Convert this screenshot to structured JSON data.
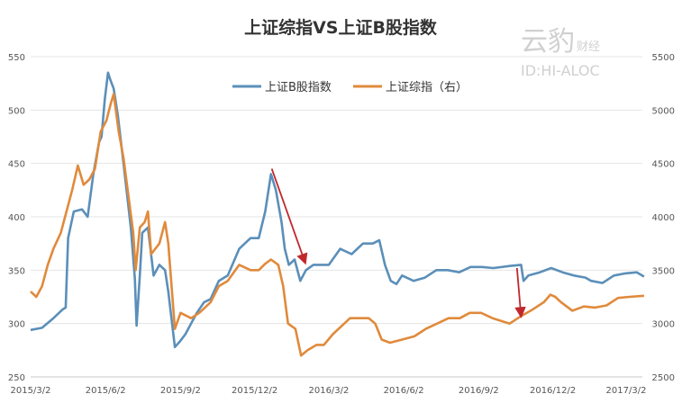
{
  "chart_data": {
    "type": "line",
    "title": "上证综指VS上证B股指数",
    "watermark": {
      "brand_large": "云豹",
      "brand_small": "财经",
      "id_text": "ID:HI-ALOC"
    },
    "x_ticks": [
      "2015/3/2",
      "2015/6/2",
      "2015/9/2",
      "2015/12/2",
      "2016/3/2",
      "2016/6/2",
      "2016/9/2",
      "2016/12/2",
      "2017/3/2"
    ],
    "y_left": {
      "ticks": [
        "250",
        "300",
        "350",
        "400",
        "450",
        "500",
        "550"
      ],
      "ylim": [
        250,
        550
      ]
    },
    "y_right": {
      "ticks": [
        "2500",
        "3000",
        "3500",
        "4000",
        "4500",
        "5000",
        "5500"
      ],
      "ylim": [
        2500,
        5500
      ]
    },
    "legend_position": "top-center",
    "series": [
      {
        "name": "上证B股指数",
        "axis": "left",
        "color": "#5b8fb9",
        "points": [
          [
            "2015/3/2",
            294
          ],
          [
            "2015/3/16",
            296
          ],
          [
            "2015/3/30",
            305
          ],
          [
            "2015/4/10",
            313
          ],
          [
            "2015/4/14",
            315
          ],
          [
            "2015/4/17",
            380
          ],
          [
            "2015/4/24",
            405
          ],
          [
            "2015/5/4",
            407
          ],
          [
            "2015/5/11",
            400
          ],
          [
            "2015/5/18",
            440
          ],
          [
            "2015/5/25",
            470
          ],
          [
            "2015/5/28",
            475
          ],
          [
            "2015/6/1",
            510
          ],
          [
            "2015/6/5",
            535
          ],
          [
            "2015/6/8",
            528
          ],
          [
            "2015/6/12",
            520
          ],
          [
            "2015/6/17",
            495
          ],
          [
            "2015/6/24",
            450
          ],
          [
            "2015/7/3",
            390
          ],
          [
            "2015/7/8",
            342
          ],
          [
            "2015/7/10",
            298
          ],
          [
            "2015/7/14",
            345
          ],
          [
            "2015/7/17",
            385
          ],
          [
            "2015/7/24",
            390
          ],
          [
            "2015/7/31",
            345
          ],
          [
            "2015/8/7",
            355
          ],
          [
            "2015/8/14",
            350
          ],
          [
            "2015/8/18",
            330
          ],
          [
            "2015/8/26",
            278
          ],
          [
            "2015/9/1",
            283
          ],
          [
            "2015/9/8",
            290
          ],
          [
            "2015/9/15",
            300
          ],
          [
            "2015/9/22",
            310
          ],
          [
            "2015/10/1",
            320
          ],
          [
            "2015/10/9",
            323
          ],
          [
            "2015/10/19",
            340
          ],
          [
            "2015/10/30",
            345
          ],
          [
            "2015/11/13",
            370
          ],
          [
            "2015/11/27",
            380
          ],
          [
            "2015/12/7",
            380
          ],
          [
            "2015/12/15",
            405
          ],
          [
            "2015/12/22",
            440
          ],
          [
            "2015/12/28",
            425
          ],
          [
            "2016/1/4",
            395
          ],
          [
            "2016/1/8",
            370
          ],
          [
            "2016/1/13",
            355
          ],
          [
            "2016/1/20",
            360
          ],
          [
            "2016/1/27",
            340
          ],
          [
            "2016/2/3",
            350
          ],
          [
            "2016/2/12",
            355
          ],
          [
            "2016/2/22",
            355
          ],
          [
            "2016/3/2",
            355
          ],
          [
            "2016/3/16",
            370
          ],
          [
            "2016/3/30",
            365
          ],
          [
            "2016/4/13",
            375
          ],
          [
            "2016/4/25",
            375
          ],
          [
            "2016/5/3",
            378
          ],
          [
            "2016/5/10",
            355
          ],
          [
            "2016/5/17",
            340
          ],
          [
            "2016/5/24",
            337
          ],
          [
            "2016/5/31",
            345
          ],
          [
            "2016/6/14",
            340
          ],
          [
            "2016/6/28",
            343
          ],
          [
            "2016/7/12",
            350
          ],
          [
            "2016/7/26",
            350
          ],
          [
            "2016/8/9",
            348
          ],
          [
            "2016/8/23",
            353
          ],
          [
            "2016/9/6",
            353
          ],
          [
            "2016/9/20",
            352
          ],
          [
            "2016/10/11",
            354
          ],
          [
            "2016/10/24",
            355
          ],
          [
            "2016/10/27",
            340
          ],
          [
            "2016/11/2",
            345
          ],
          [
            "2016/11/16",
            348
          ],
          [
            "2016/11/30",
            352
          ],
          [
            "2016/12/14",
            348
          ],
          [
            "2016/12/28",
            345
          ],
          [
            "2017/1/11",
            343
          ],
          [
            "2017/1/18",
            340
          ],
          [
            "2017/2/1",
            338
          ],
          [
            "2017/2/15",
            345
          ],
          [
            "2017/3/1",
            347
          ],
          [
            "2017/3/15",
            348
          ],
          [
            "2017/3/24",
            344
          ]
        ]
      },
      {
        "name": "上证综指（右）",
        "axis": "right",
        "color": "#e08a3c",
        "points": [
          [
            "2015/3/2",
            3300
          ],
          [
            "2015/3/9",
            3250
          ],
          [
            "2015/3/16",
            3350
          ],
          [
            "2015/3/23",
            3550
          ],
          [
            "2015/3/30",
            3700
          ],
          [
            "2015/4/8",
            3850
          ],
          [
            "2015/4/15",
            4050
          ],
          [
            "2015/4/22",
            4250
          ],
          [
            "2015/4/29",
            4480
          ],
          [
            "2015/5/6",
            4300
          ],
          [
            "2015/5/13",
            4350
          ],
          [
            "2015/5/20",
            4450
          ],
          [
            "2015/5/27",
            4800
          ],
          [
            "2015/6/3",
            4900
          ],
          [
            "2015/6/8",
            5050
          ],
          [
            "2015/6/12",
            5150
          ],
          [
            "2015/6/18",
            4800
          ],
          [
            "2015/6/24",
            4550
          ],
          [
            "2015/6/30",
            4200
          ],
          [
            "2015/7/6",
            3850
          ],
          [
            "2015/7/9",
            3500
          ],
          [
            "2015/7/14",
            3900
          ],
          [
            "2015/7/20",
            3950
          ],
          [
            "2015/7/24",
            4050
          ],
          [
            "2015/7/28",
            3650
          ],
          [
            "2015/8/7",
            3750
          ],
          [
            "2015/8/14",
            3950
          ],
          [
            "2015/8/18",
            3750
          ],
          [
            "2015/8/26",
            2950
          ],
          [
            "2015/9/2",
            3100
          ],
          [
            "2015/9/15",
            3050
          ],
          [
            "2015/9/25",
            3100
          ],
          [
            "2015/10/9",
            3200
          ],
          [
            "2015/10/19",
            3350
          ],
          [
            "2015/10/30",
            3400
          ],
          [
            "2015/11/13",
            3550
          ],
          [
            "2015/11/27",
            3500
          ],
          [
            "2015/12/7",
            3500
          ],
          [
            "2015/12/15",
            3560
          ],
          [
            "2015/12/22",
            3600
          ],
          [
            "2015/12/31",
            3550
          ],
          [
            "2016/1/6",
            3350
          ],
          [
            "2016/1/12",
            3000
          ],
          [
            "2016/1/21",
            2950
          ],
          [
            "2016/1/28",
            2700
          ],
          [
            "2016/2/5",
            2750
          ],
          [
            "2016/2/16",
            2800
          ],
          [
            "2016/2/25",
            2800
          ],
          [
            "2016/3/7",
            2900
          ],
          [
            "2016/3/14",
            2950
          ],
          [
            "2016/3/28",
            3050
          ],
          [
            "2016/4/11",
            3050
          ],
          [
            "2016/4/20",
            3050
          ],
          [
            "2016/4/28",
            3000
          ],
          [
            "2016/5/6",
            2850
          ],
          [
            "2016/5/16",
            2820
          ],
          [
            "2016/5/31",
            2850
          ],
          [
            "2016/6/15",
            2880
          ],
          [
            "2016/6/29",
            2950
          ],
          [
            "2016/7/13",
            3000
          ],
          [
            "2016/7/27",
            3050
          ],
          [
            "2016/8/10",
            3050
          ],
          [
            "2016/8/22",
            3100
          ],
          [
            "2016/9/5",
            3100
          ],
          [
            "2016/9/19",
            3050
          ],
          [
            "2016/10/10",
            3000
          ],
          [
            "2016/10/24",
            3070
          ],
          [
            "2016/11/7",
            3130
          ],
          [
            "2016/11/21",
            3200
          ],
          [
            "2016/11/29",
            3270
          ],
          [
            "2016/12/5",
            3250
          ],
          [
            "2016/12/12",
            3200
          ],
          [
            "2016/12/26",
            3120
          ],
          [
            "2017/1/9",
            3160
          ],
          [
            "2017/1/23",
            3150
          ],
          [
            "2017/2/6",
            3170
          ],
          [
            "2017/2/20",
            3240
          ],
          [
            "2017/3/6",
            3250
          ],
          [
            "2017/3/24",
            3260
          ]
        ]
      }
    ],
    "annotations": [
      {
        "type": "arrow",
        "color": "#c0282d",
        "from": [
          "2015/12/23",
          445
        ],
        "to": [
          "2016/2/2",
          357
        ]
      },
      {
        "type": "arrow",
        "color": "#c0282d",
        "from": [
          "2016/10/19",
          352
        ],
        "to": [
          "2016/10/24",
          307
        ]
      }
    ]
  }
}
